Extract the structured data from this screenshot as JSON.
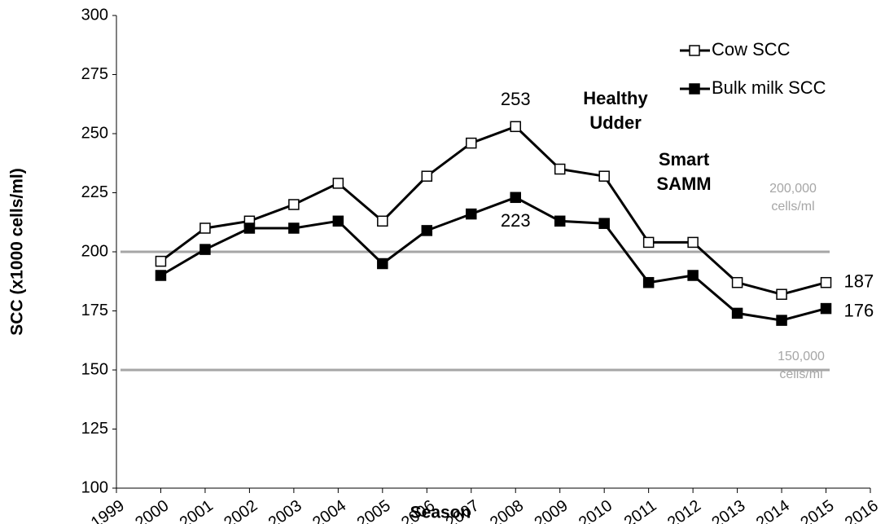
{
  "chart_data": {
    "type": "line",
    "x_label": "Season",
    "y_label": "SCC (x1000 cells/ml)",
    "x": [
      2000,
      2001,
      2002,
      2003,
      2004,
      2005,
      2006,
      2007,
      2008,
      2009,
      2010,
      2011,
      2012,
      2013,
      2014,
      2015
    ],
    "series": [
      {
        "name": "Cow SCC",
        "color": "#000000",
        "marker_fill": "#ffffff",
        "values": [
          196,
          210,
          213,
          220,
          229,
          213,
          232,
          246,
          253,
          235,
          232,
          204,
          204,
          187,
          182,
          187
        ]
      },
      {
        "name": "Bulk milk SCC",
        "color": "#000000",
        "marker_fill": "#000000",
        "values": [
          190,
          201,
          210,
          210,
          213,
          195,
          209,
          216,
          223,
          213,
          212,
          187,
          190,
          174,
          171,
          176
        ]
      }
    ],
    "xlim": [
      1999,
      2016
    ],
    "xticks": [
      1999,
      2000,
      2001,
      2002,
      2003,
      2004,
      2005,
      2006,
      2007,
      2008,
      2009,
      2010,
      2011,
      2012,
      2013,
      2014,
      2015,
      2016
    ],
    "ylim": [
      100,
      300
    ],
    "yticks": [
      100,
      125,
      150,
      175,
      200,
      225,
      250,
      275,
      300
    ],
    "reference_lines": [
      {
        "value": 200,
        "label": [
          "200,000",
          "cells/ml"
        ],
        "color": "#a6a6a6"
      },
      {
        "value": 150,
        "label": [
          "150,000",
          "cells/ml"
        ],
        "color": "#a6a6a6"
      }
    ],
    "annotations": [
      {
        "text": [
          "Healthy",
          "Udder"
        ]
      },
      {
        "text": [
          "Smart",
          "SAMM"
        ]
      }
    ],
    "legend": "upper right"
  }
}
